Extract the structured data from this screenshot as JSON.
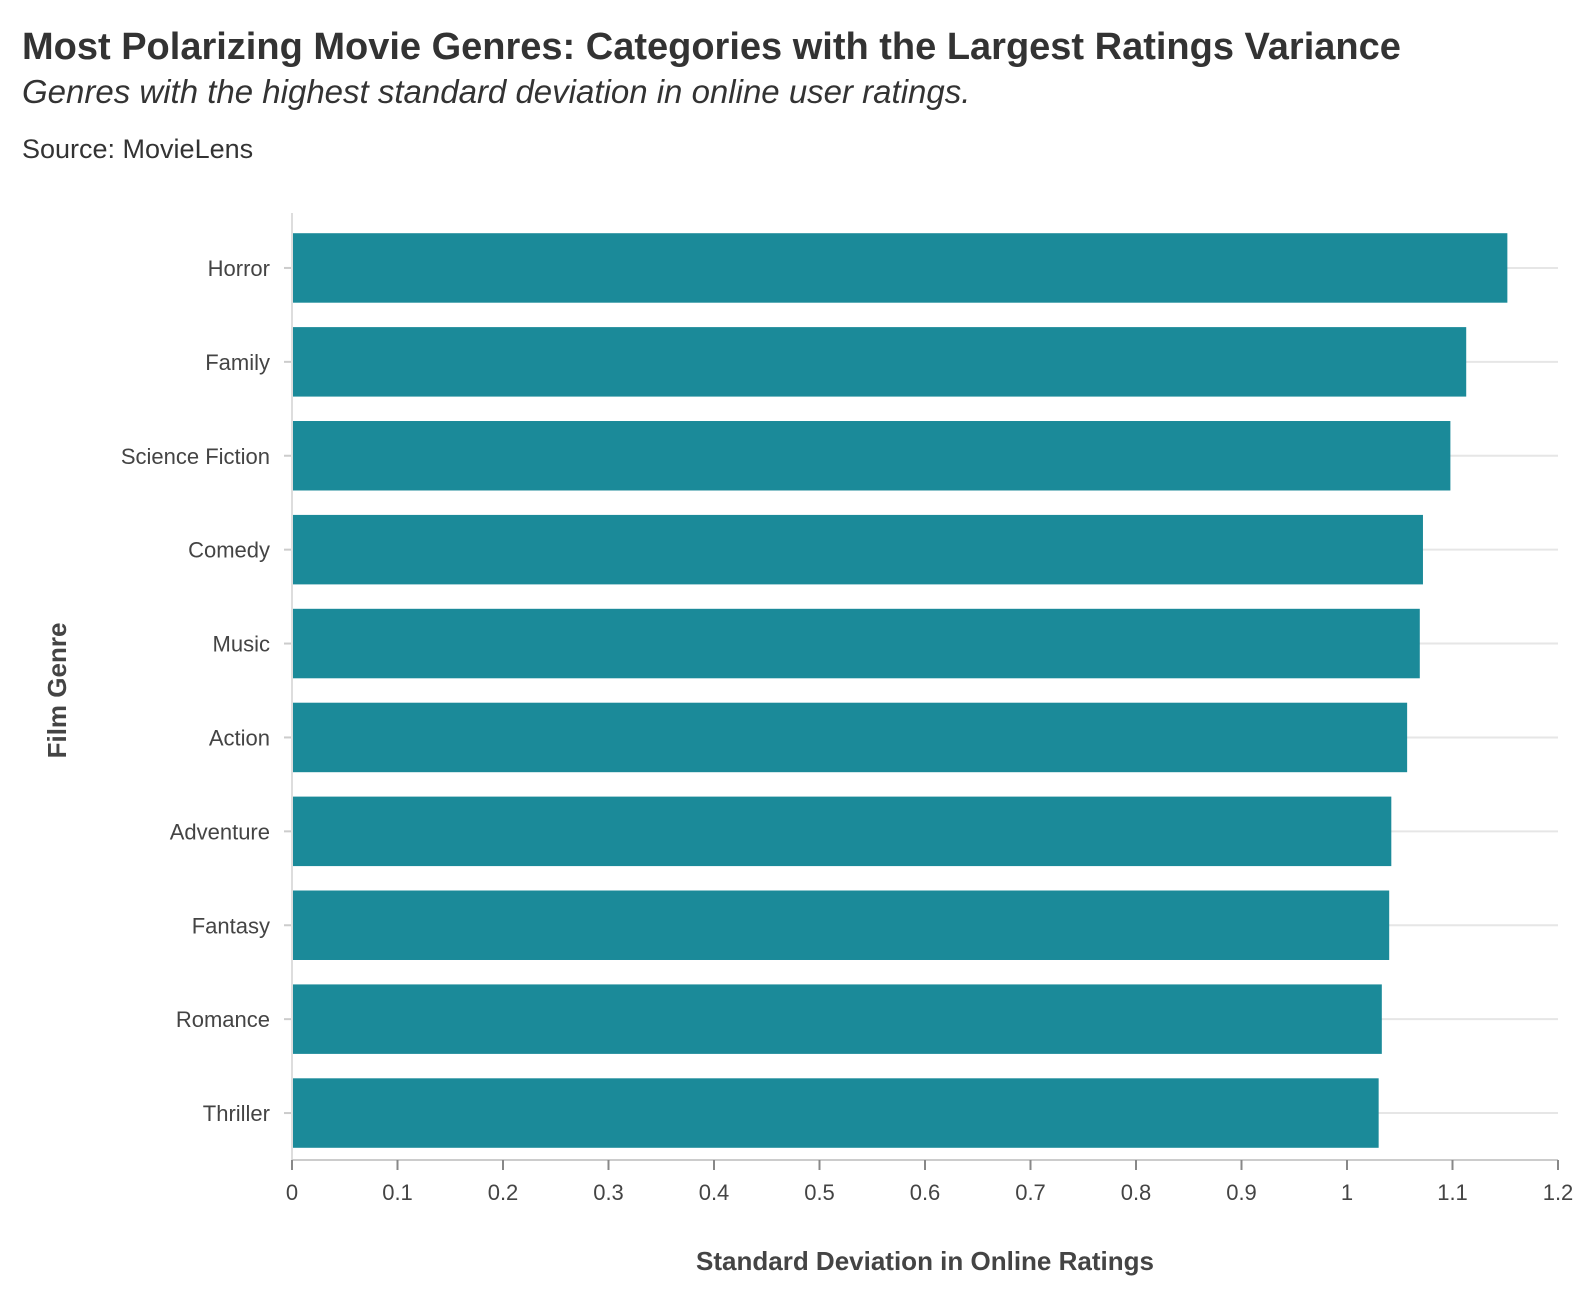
{
  "chart_data": {
    "type": "bar",
    "orientation": "horizontal",
    "title": "Most Polarizing Movie Genres: Categories with the Largest Ratings Variance",
    "subtitle": "Genres with the highest standard deviation in online user ratings.",
    "source": "Source: MovieLens",
    "xlabel": "Standard Deviation in Online Ratings",
    "ylabel": "Film Genre",
    "xlim": [
      0,
      1.2
    ],
    "x_ticks": [
      "0",
      "0.1",
      "0.2",
      "0.3",
      "0.4",
      "0.5",
      "0.6",
      "0.7",
      "0.8",
      "0.9",
      "1",
      "1.1",
      "1.2"
    ],
    "x_tick_values": [
      0,
      0.1,
      0.2,
      0.3,
      0.4,
      0.5,
      0.6,
      0.7,
      0.8,
      0.9,
      1.0,
      1.1,
      1.2
    ],
    "categories": [
      "Horror",
      "Family",
      "Science Fiction",
      "Comedy",
      "Music",
      "Action",
      "Adventure",
      "Fantasy",
      "Romance",
      "Thriller"
    ],
    "values": [
      1.152,
      1.113,
      1.098,
      1.072,
      1.069,
      1.057,
      1.042,
      1.04,
      1.033,
      1.03
    ],
    "bar_color": "#1b8a99",
    "grid": true,
    "legend": "none"
  }
}
